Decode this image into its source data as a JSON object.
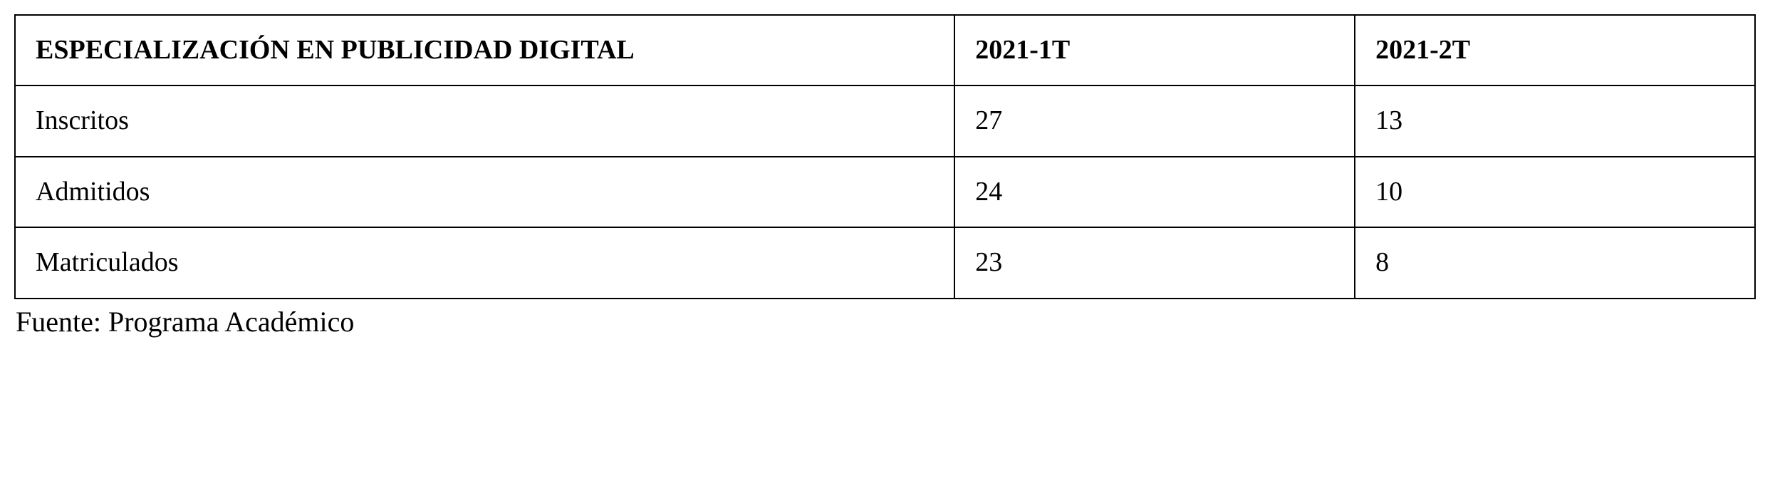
{
  "table": {
    "type": "table",
    "header_fontsize": 38,
    "cell_fontsize": 38,
    "border_color": "#000000",
    "background_color": "#ffffff",
    "text_color": "#000000",
    "font_family": "Times New Roman",
    "column_widths_pct": [
      54,
      23,
      23
    ],
    "columns": [
      {
        "label": "ESPECIALIZACIÓN EN PUBLICIDAD DIGITAL",
        "align": "left",
        "weight": "bold"
      },
      {
        "label": "2021-1T",
        "align": "left",
        "weight": "bold"
      },
      {
        "label": "2021-2T",
        "align": "left",
        "weight": "bold"
      }
    ],
    "rows": [
      {
        "label": "Inscritos",
        "period1": "27",
        "period2": "13"
      },
      {
        "label": "Admitidos",
        "period1": "24",
        "period2": "10"
      },
      {
        "label": "Matriculados",
        "period1": "23",
        "period2": "8"
      }
    ]
  },
  "source": {
    "text": "Fuente: Programa Académico",
    "fontsize": 40
  }
}
